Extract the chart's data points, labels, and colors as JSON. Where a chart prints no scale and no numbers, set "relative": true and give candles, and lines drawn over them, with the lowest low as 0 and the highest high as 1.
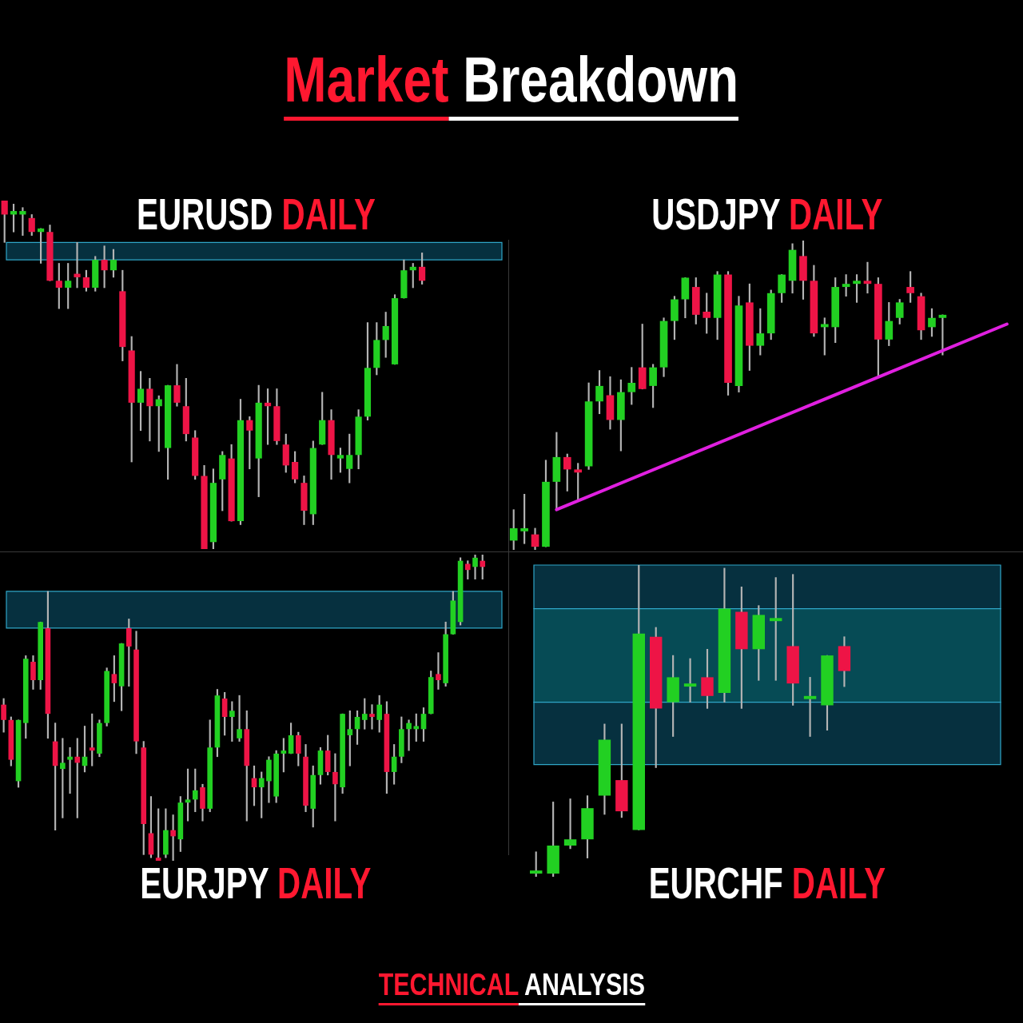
{
  "chart_data": [
    {
      "type": "candlestick",
      "relative": true,
      "title": "EURUSD DAILY",
      "annotations": [
        "Market Breakdown"
      ],
      "categories": [
        null,
        null,
        null,
        null,
        null,
        null,
        null,
        null,
        null,
        null,
        null,
        null,
        null,
        null,
        null,
        null,
        null,
        null,
        null,
        null,
        null,
        null,
        null,
        null,
        null,
        null,
        null,
        null,
        null,
        null,
        null,
        null,
        null,
        null,
        null,
        null,
        null,
        null,
        null,
        null,
        null,
        null,
        null,
        null,
        null,
        null,
        null,
        null,
        null,
        null,
        null,
        null,
        null,
        null,
        null,
        null
      ],
      "ohlc": [
        [
          1,
          1,
          0.88,
          0.96
        ],
        [
          0.96,
          0.99,
          0.91,
          0.97
        ],
        [
          0.96,
          0.98,
          0.9,
          0.97
        ],
        [
          0.95,
          0.96,
          0.9,
          0.91
        ],
        [
          0.91,
          0.92,
          0.82,
          0.92
        ],
        [
          0.91,
          0.93,
          0.77,
          0.77
        ],
        [
          0.77,
          0.82,
          0.69,
          0.75
        ],
        [
          0.75,
          0.82,
          0.69,
          0.77
        ],
        [
          0.79,
          0.88,
          0.75,
          0.78
        ],
        [
          0.78,
          0.8,
          0.74,
          0.75
        ],
        [
          0.75,
          0.84,
          0.74,
          0.83
        ],
        [
          0.83,
          0.87,
          0.75,
          0.8
        ],
        [
          0.8,
          0.86,
          0.78,
          0.83
        ],
        [
          0.74,
          0.8,
          0.54,
          0.58
        ],
        [
          0.57,
          0.61,
          0.25,
          0.42
        ],
        [
          0.42,
          0.51,
          0.34,
          0.46
        ],
        [
          0.46,
          0.49,
          0.31,
          0.41
        ],
        [
          0.41,
          0.44,
          0.28,
          0.43
        ],
        [
          0.29,
          0.47,
          0.2,
          0.47
        ],
        [
          0.47,
          0.53,
          0.41,
          0.42
        ],
        [
          0.41,
          0.49,
          0.31,
          0.33
        ],
        [
          0.32,
          0.34,
          0.2,
          0.21
        ],
        [
          0.21,
          0.24,
          0,
          0
        ],
        [
          0.02,
          0.23,
          0,
          0.19
        ],
        [
          0.2,
          0.28,
          0.11,
          0.27
        ],
        [
          0.26,
          0.3,
          0.08,
          0.08
        ],
        [
          0.08,
          0.43,
          0.07,
          0.37
        ],
        [
          0.37,
          0.38,
          0.23,
          0.34
        ],
        [
          0.26,
          0.47,
          0.15,
          0.42
        ],
        [
          0.42,
          0.46,
          0.3,
          0.41
        ],
        [
          0.41,
          0.46,
          0.3,
          0.31
        ],
        [
          0.3,
          0.33,
          0.22,
          0.24
        ],
        [
          0.25,
          0.28,
          0.19,
          0.2
        ],
        [
          0.19,
          0.21,
          0.07,
          0.11
        ],
        [
          0.1,
          0.31,
          0.07,
          0.29
        ],
        [
          0.3,
          0.45,
          0.3,
          0.37
        ],
        [
          0.37,
          0.4,
          0.2,
          0.27
        ],
        [
          0.26,
          0.29,
          0.22,
          0.27
        ],
        [
          0.23,
          0.33,
          0.19,
          0.27
        ],
        [
          0.27,
          0.4,
          0.23,
          0.38
        ],
        [
          0.38,
          0.65,
          0.37,
          0.52
        ],
        [
          0.52,
          0.65,
          0.5,
          0.6
        ],
        [
          0.6,
          0.68,
          0.55,
          0.64
        ],
        [
          0.53,
          0.73,
          0.53,
          0.72
        ],
        [
          0.72,
          0.83,
          0.72,
          0.8
        ],
        [
          0.8,
          0.82,
          0.75,
          0.81
        ],
        [
          0.81,
          0.85,
          0.76,
          0.77
        ],
        null,
        null,
        null,
        null,
        null,
        null,
        null,
        null,
        null
      ],
      "bands": [
        {
          "axis": "y",
          "from": 0.83,
          "to": 0.88,
          "color": "#06303f"
        }
      ]
    },
    {
      "type": "candlestick",
      "relative": true,
      "title": "USDJPY DAILY",
      "categories": [
        null,
        null,
        null,
        null,
        null,
        null,
        null,
        null,
        null,
        null,
        null,
        null,
        null,
        null,
        null,
        null,
        null,
        null,
        null,
        null,
        null,
        null,
        null,
        null,
        null,
        null,
        null,
        null,
        null,
        null,
        null,
        null,
        null,
        null,
        null,
        null,
        null,
        null,
        null,
        null,
        null,
        null,
        null,
        null,
        null,
        null,
        null,
        null
      ],
      "ohlc": [
        [
          0.03,
          0.13,
          0,
          0.07
        ],
        [
          0.06,
          0.18,
          0.02,
          0.07
        ],
        [
          0.05,
          0.07,
          0,
          0.01
        ],
        [
          0.01,
          0.29,
          0.01,
          0.22
        ],
        [
          0.22,
          0.38,
          0.13,
          0.3
        ],
        [
          0.3,
          0.31,
          0.19,
          0.26
        ],
        [
          0.26,
          0.28,
          0.16,
          0.25
        ],
        [
          0.27,
          0.54,
          0.26,
          0.48
        ],
        [
          0.48,
          0.58,
          0.44,
          0.53
        ],
        [
          0.5,
          0.56,
          0.39,
          0.42
        ],
        [
          0.42,
          0.55,
          0.32,
          0.51
        ],
        [
          0.51,
          0.59,
          0.47,
          0.54
        ],
        [
          0.59,
          0.73,
          0.52,
          0.52
        ],
        [
          0.53,
          0.6,
          0.46,
          0.59
        ],
        [
          0.59,
          0.75,
          0.56,
          0.74
        ],
        [
          0.74,
          0.82,
          0.68,
          0.81
        ],
        [
          0.81,
          0.88,
          0.75,
          0.88
        ],
        [
          0.85,
          0.88,
          0.73,
          0.76
        ],
        [
          0.77,
          0.83,
          0.7,
          0.75
        ],
        [
          0.75,
          0.9,
          0.68,
          0.89
        ],
        [
          0.89,
          0.9,
          0.5,
          0.54
        ],
        [
          0.53,
          0.82,
          0.51,
          0.79
        ],
        [
          0.8,
          0.86,
          0.58,
          0.66
        ],
        [
          0.66,
          0.78,
          0.63,
          0.7
        ],
        [
          0.7,
          0.84,
          0.68,
          0.83
        ],
        [
          0.83,
          0.89,
          0.8,
          0.89
        ],
        [
          0.87,
          0.99,
          0.83,
          0.97
        ],
        [
          0.95,
          1,
          0.81,
          0.87
        ],
        [
          0.87,
          0.92,
          0.69,
          0.7
        ],
        [
          0.72,
          0.75,
          0.63,
          0.73
        ],
        [
          0.72,
          0.88,
          0.67,
          0.85
        ],
        [
          0.85,
          0.89,
          0.82,
          0.86
        ],
        [
          0.86,
          0.89,
          0.8,
          0.87
        ],
        [
          0.87,
          0.93,
          0.83,
          0.86
        ],
        [
          0.86,
          0.88,
          0.56,
          0.68
        ],
        [
          0.68,
          0.8,
          0.66,
          0.74
        ],
        [
          0.75,
          0.81,
          0.73,
          0.8
        ],
        [
          0.85,
          0.9,
          0.8,
          0.83
        ],
        [
          0.82,
          0.83,
          0.68,
          0.71
        ],
        [
          0.72,
          0.78,
          0.69,
          0.75
        ],
        [
          0.75,
          0.76,
          0.63,
          0.76
        ],
        null,
        null,
        null,
        null,
        null,
        null,
        null
      ],
      "series": [
        {
          "type": "line",
          "color": "#e020e0",
          "values": [
            null,
            null,
            null,
            null,
            0.13,
            null,
            null,
            null,
            null,
            null,
            null,
            null,
            null,
            null,
            null,
            null,
            null,
            null,
            null,
            null,
            null,
            null,
            null,
            null,
            null,
            null,
            null,
            null,
            null,
            null,
            null,
            null,
            null,
            null,
            null,
            null,
            null,
            null,
            null,
            null,
            null,
            null,
            null,
            null,
            null,
            null,
            0.73,
            null
          ]
        }
      ]
    },
    {
      "type": "candlestick",
      "relative": true,
      "title": "EURJPY DAILY",
      "categories": [
        null,
        null,
        null,
        null,
        null,
        null,
        null,
        null,
        null,
        null,
        null,
        null,
        null,
        null,
        null,
        null,
        null,
        null,
        null,
        null,
        null,
        null,
        null,
        null,
        null,
        null,
        null,
        null,
        null,
        null,
        null,
        null,
        null,
        null,
        null,
        null,
        null,
        null,
        null,
        null,
        null,
        null,
        null,
        null,
        null,
        null,
        null,
        null,
        null,
        null,
        null,
        null,
        null,
        null,
        null,
        null,
        null,
        null,
        null,
        null,
        null,
        null,
        null,
        null,
        null,
        null,
        null,
        null,
        null
      ],
      "ohlc": [
        [
          0.51,
          0.53,
          0.42,
          0.46
        ],
        [
          0.46,
          0.47,
          0.31,
          0.33
        ],
        [
          0.26,
          0.46,
          0.24,
          0.46
        ],
        [
          0.45,
          0.67,
          0.4,
          0.66
        ],
        [
          0.65,
          0.67,
          0.56,
          0.59
        ],
        [
          0.59,
          0.78,
          0.56,
          0.78
        ],
        [
          0.76,
          0.88,
          0.4,
          0.48
        ],
        [
          0.39,
          0.45,
          0.1,
          0.31
        ],
        [
          0.3,
          0.4,
          0.14,
          0.32
        ],
        [
          0.33,
          0.37,
          0.22,
          0.34
        ],
        [
          0.34,
          0.4,
          0.14,
          0.32
        ],
        [
          0.31,
          0.44,
          0.29,
          0.34
        ],
        [
          0.37,
          0.48,
          0.31,
          0.36
        ],
        [
          0.35,
          0.46,
          0.34,
          0.45
        ],
        [
          0.45,
          0.63,
          0.44,
          0.62
        ],
        [
          0.61,
          0.67,
          0.52,
          0.58
        ],
        [
          0.57,
          0.71,
          0.49,
          0.71
        ],
        [
          0.76,
          0.79,
          0.57,
          0.7
        ],
        [
          0.69,
          0.75,
          0.35,
          0.39
        ],
        [
          0.37,
          0.39,
          0.02,
          0.12
        ],
        [
          0.09,
          0.21,
          0.01,
          0.02
        ],
        [
          0.01,
          0.17,
          0,
          0
        ],
        [
          0.02,
          0.17,
          0.01,
          0.1
        ],
        [
          0.1,
          0.15,
          0,
          0.08
        ],
        [
          0.07,
          0.21,
          0.03,
          0.19
        ],
        [
          0.19,
          0.3,
          0.13,
          0.2
        ],
        [
          0.2,
          0.3,
          0.16,
          0.23
        ],
        [
          0.24,
          0.25,
          0.13,
          0.17
        ],
        [
          0.17,
          0.46,
          0.16,
          0.37
        ],
        [
          0.37,
          0.56,
          0.34,
          0.54
        ],
        [
          0.53,
          0.55,
          0.41,
          0.47
        ],
        [
          0.47,
          0.52,
          0.39,
          0.49
        ],
        [
          0.4,
          0.54,
          0.39,
          0.43
        ],
        [
          0.43,
          0.49,
          0.13,
          0.31
        ],
        [
          0.27,
          0.31,
          0.18,
          0.24
        ],
        [
          0.24,
          0.29,
          0.14,
          0.27
        ],
        [
          0.26,
          0.34,
          0.19,
          0.33
        ],
        [
          0.21,
          0.36,
          0.19,
          0.35
        ],
        [
          0.35,
          0.4,
          0.29,
          0.36
        ],
        [
          0.35,
          0.45,
          0.35,
          0.41
        ],
        [
          0.41,
          0.42,
          0.31,
          0.35
        ],
        [
          0.34,
          0.38,
          0.16,
          0.18
        ],
        [
          0.17,
          0.31,
          0.11,
          0.28
        ],
        [
          0.28,
          0.37,
          0.25,
          0.36
        ],
        [
          0.36,
          0.41,
          0.28,
          0.29
        ],
        [
          0.29,
          0.35,
          0.13,
          0.25
        ],
        [
          0.24,
          0.48,
          0.22,
          0.48
        ],
        [
          0.41,
          0.49,
          0.31,
          0.43
        ],
        [
          0.43,
          0.49,
          0.38,
          0.47
        ],
        [
          0.46,
          0.53,
          0.43,
          0.48
        ],
        [
          0.48,
          0.51,
          0.43,
          0.47
        ],
        [
          0.46,
          0.54,
          0.42,
          0.51
        ],
        [
          0.48,
          0.52,
          0.22,
          0.29
        ],
        [
          0.29,
          0.38,
          0.25,
          0.34
        ],
        [
          0.34,
          0.47,
          0.32,
          0.43
        ],
        [
          0.43,
          0.46,
          0.36,
          0.45
        ],
        [
          0.43,
          0.48,
          0.39,
          0.44
        ],
        [
          0.43,
          0.5,
          0.39,
          0.48
        ],
        [
          0.48,
          0.62,
          0.48,
          0.6
        ],
        [
          0.61,
          0.68,
          0.56,
          0.59
        ],
        [
          0.58,
          0.78,
          0.57,
          0.74
        ],
        [
          0.74,
          0.88,
          0.74,
          0.85
        ],
        [
          0.78,
          0.99,
          0.77,
          0.98
        ],
        [
          0.97,
          0.98,
          0.92,
          0.95
        ],
        [
          0.96,
          1,
          0.92,
          0.99
        ],
        [
          0.98,
          1,
          0.92,
          0.96
        ],
        null,
        null,
        null
      ],
      "bands": [
        {
          "axis": "y",
          "from": 0.76,
          "to": 0.88,
          "color": "#06303f"
        }
      ]
    },
    {
      "type": "candlestick",
      "relative": true,
      "title": "EURCHF DAILY",
      "annotations": [
        "TECHNICAL ANALYSIS"
      ],
      "categories": [
        null,
        null,
        null,
        null,
        null,
        null,
        null,
        null,
        null,
        null,
        null,
        null,
        null,
        null,
        null,
        null,
        null,
        null,
        null,
        null,
        null,
        null,
        null,
        null,
        null,
        null,
        null,
        null
      ],
      "ohlc": [
        [
          0.01,
          0.08,
          0,
          0.02
        ],
        [
          0.01,
          0.24,
          0,
          0.1
        ],
        [
          0.1,
          0.25,
          0.09,
          0.12
        ],
        [
          0.12,
          0.26,
          0.06,
          0.22
        ],
        [
          0.26,
          0.49,
          0.2,
          0.44
        ],
        [
          0.31,
          0.49,
          0.19,
          0.21
        ],
        [
          0.15,
          1,
          0.15,
          0.78
        ],
        [
          0.77,
          0.8,
          0.35,
          0.54
        ],
        [
          0.56,
          0.71,
          0.45,
          0.64
        ],
        [
          0.61,
          0.7,
          0.56,
          0.62
        ],
        [
          0.64,
          0.73,
          0.54,
          0.58
        ],
        [
          0.59,
          0.99,
          0.56,
          0.86
        ],
        [
          0.85,
          0.93,
          0.54,
          0.73
        ],
        [
          0.73,
          0.87,
          0.63,
          0.84
        ],
        [
          0.82,
          0.96,
          0.63,
          0.83
        ],
        [
          0.74,
          0.97,
          0.55,
          0.62
        ],
        [
          0.57,
          0.64,
          0.45,
          0.58
        ],
        [
          0.55,
          0.71,
          0.47,
          0.71
        ],
        [
          0.74,
          0.77,
          0.61,
          0.66
        ],
        null,
        null,
        null,
        null,
        null,
        null,
        null,
        null,
        null
      ],
      "bands": [
        {
          "axis": "y",
          "from": 0.86,
          "to": 1,
          "color": "#06303f"
        },
        {
          "axis": "y",
          "from": 0.56,
          "to": 0.86,
          "color": "#064b55"
        },
        {
          "axis": "y",
          "from": 0.36,
          "to": 0.56,
          "color": "#06303f"
        }
      ]
    }
  ]
}
